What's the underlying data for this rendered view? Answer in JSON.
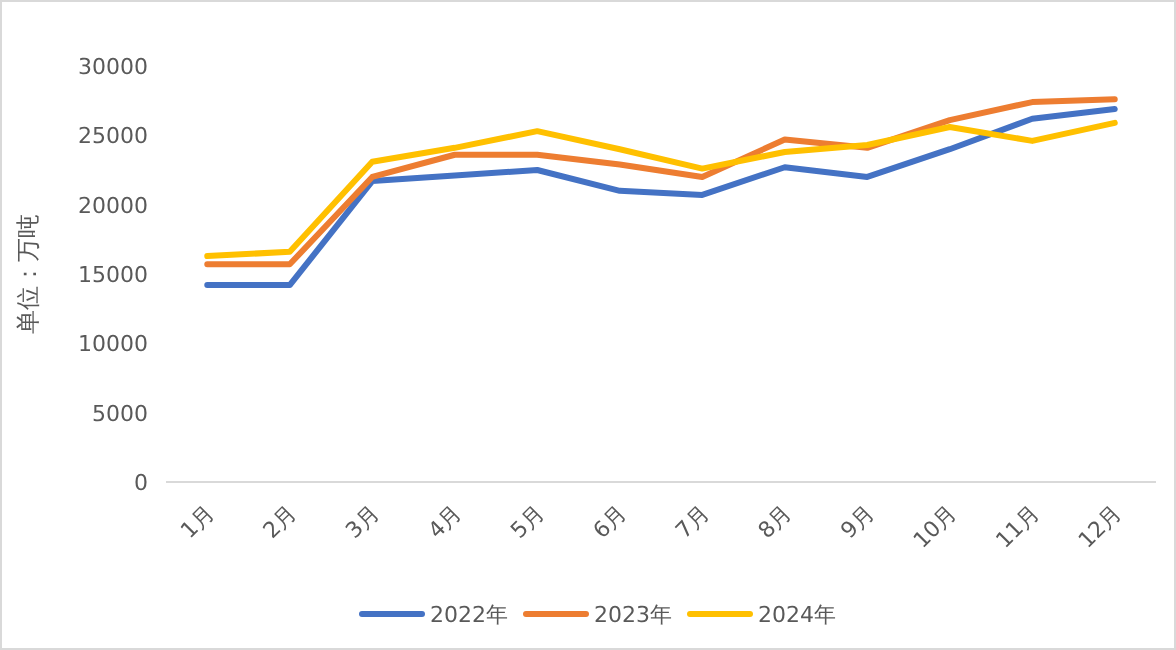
{
  "chart_data": {
    "type": "line",
    "ylabel": "单位：万吨",
    "categories": [
      "1月",
      "2月",
      "3月",
      "4月",
      "5月",
      "6月",
      "7月",
      "8月",
      "9月",
      "10月",
      "11月",
      "12月"
    ],
    "series": [
      {
        "name": "2022年",
        "color": "#4472c4",
        "values": [
          14200,
          14200,
          21700,
          22100,
          22500,
          21000,
          20700,
          22700,
          22000,
          24000,
          26200,
          26900
        ]
      },
      {
        "name": "2023年",
        "color": "#ed7d31",
        "values": [
          15700,
          15700,
          22000,
          23600,
          23600,
          22900,
          22000,
          24700,
          24100,
          26100,
          27400,
          27600
        ]
      },
      {
        "name": "2024年",
        "color": "#ffc000",
        "values": [
          16300,
          16600,
          23100,
          24100,
          25300,
          24000,
          22600,
          23800,
          24300,
          25600,
          24600,
          25900
        ]
      }
    ],
    "ylim": [
      0,
      30000
    ],
    "yticks": [
      0,
      5000,
      10000,
      15000,
      20000,
      25000,
      30000
    ],
    "grid": false,
    "legend": "bottom",
    "marker": "none",
    "line_style": "solid"
  }
}
